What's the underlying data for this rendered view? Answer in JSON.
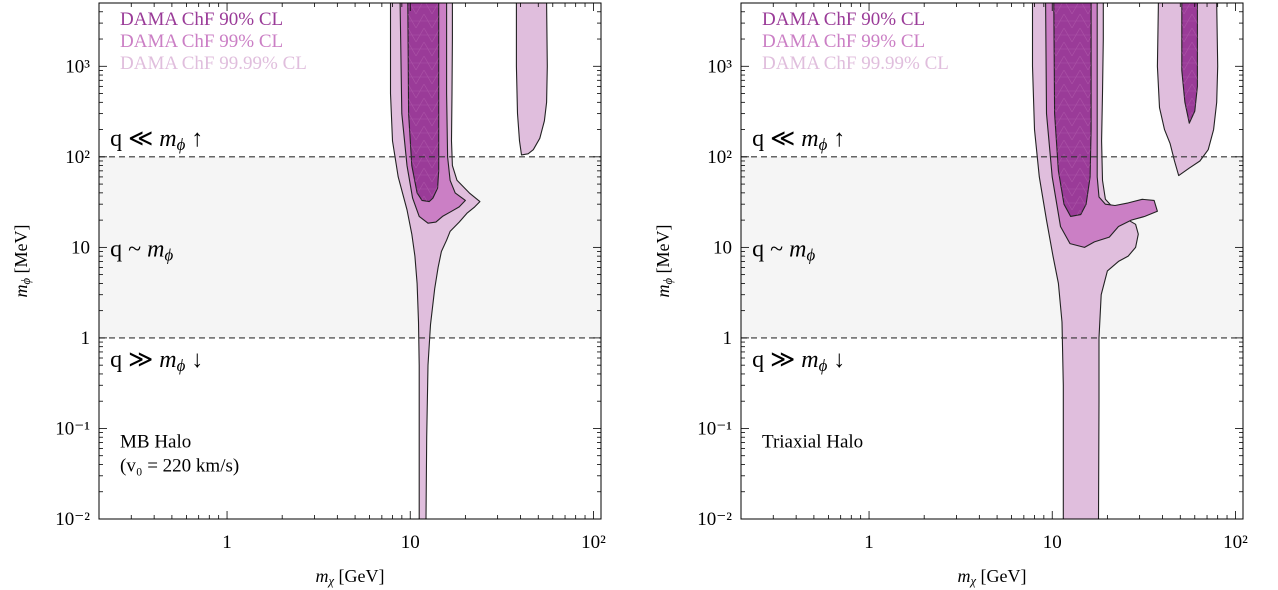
{
  "chart_data": [
    {
      "type": "area",
      "subtype": "confidence-contour",
      "xlabel": "m_χ [GeV]",
      "ylabel": "m_ϕ [MeV]",
      "x_scale": "log",
      "y_scale": "log",
      "xlim": [
        0.2,
        110
      ],
      "ylim": [
        0.01,
        5000
      ],
      "x_ticks": [
        {
          "v": 1,
          "label": "1"
        },
        {
          "v": 10,
          "label": "10"
        },
        {
          "v": 100,
          "label": "10²"
        }
      ],
      "y_ticks": [
        {
          "v": 0.01,
          "label": "10⁻²"
        },
        {
          "v": 0.1,
          "label": "10⁻¹"
        },
        {
          "v": 1,
          "label": "1"
        },
        {
          "v": 10,
          "label": "10"
        },
        {
          "v": 100,
          "label": "10²"
        },
        {
          "v": 1000,
          "label": "10³"
        }
      ],
      "shaded_band": [
        1,
        100
      ],
      "reference_lines": [
        1,
        100
      ],
      "region_labels": [
        {
          "text": "q ≪ m_ϕ ↑",
          "x": 0.23,
          "y": 165
        },
        {
          "text": "q ~ m_ϕ",
          "x": 0.23,
          "y": 10
        },
        {
          "text": "q ≫ m_ϕ ↓",
          "x": 0.23,
          "y": 0.6
        }
      ],
      "halo_label": [
        "MB Halo",
        "(v₀ = 220 km/s)"
      ],
      "legend": [
        "DAMA ChF 90% CL",
        "DAMA ChF 99% CL",
        "DAMA ChF 99.99% CL"
      ],
      "series": [
        {
          "name": "DAMA ChF 99.99% CL",
          "color": "#e0bedd",
          "regions": [
            [
              [
                7.8,
                5000
              ],
              [
                7.8,
                500
              ],
              [
                8.0,
                150
              ],
              [
                8.6,
                60
              ],
              [
                9.6,
                26
              ],
              [
                10.2,
                14
              ],
              [
                10.6,
                8
              ],
              [
                10.9,
                4
              ],
              [
                11.1,
                1.5
              ],
              [
                11.2,
                0.5
              ],
              [
                11.2,
                0.08
              ],
              [
                11.2,
                0.01
              ],
              [
                12.2,
                0.01
              ],
              [
                12.3,
                0.08
              ],
              [
                12.5,
                0.5
              ],
              [
                12.9,
                1.4
              ],
              [
                13.6,
                3.5
              ],
              [
                14.2,
                6
              ],
              [
                14.8,
                9
              ],
              [
                15.8,
                12
              ],
              [
                16.5,
                15
              ],
              [
                18.5,
                19
              ],
              [
                20.5,
                24
              ],
              [
                22.5,
                28
              ],
              [
                24,
                32
              ],
              [
                21,
                40
              ],
              [
                18,
                55
              ],
              [
                17,
                80
              ],
              [
                16.8,
                150
              ],
              [
                16.9,
                500
              ],
              [
                17,
                2000
              ],
              [
                17,
                5000
              ]
            ],
            [
              [
                38,
                5000
              ],
              [
                38,
                1000
              ],
              [
                38.5,
                300
              ],
              [
                39.5,
                150
              ],
              [
                40.5,
                105
              ],
              [
                44,
                108
              ],
              [
                47,
                120
              ],
              [
                51,
                160
              ],
              [
                54,
                250
              ],
              [
                55.5,
                400
              ],
              [
                56,
                1000
              ],
              [
                55.5,
                5000
              ]
            ]
          ]
        },
        {
          "name": "DAMA ChF 99% CL",
          "color": "#cb7fc5",
          "regions": [
            [
              [
                8.8,
                5000
              ],
              [
                9,
                300
              ],
              [
                9.6,
                80
              ],
              [
                10.3,
                35
              ],
              [
                11.2,
                22
              ],
              [
                12.5,
                18.5
              ],
              [
                13.8,
                19
              ],
              [
                15,
                22
              ],
              [
                16.8,
                25
              ],
              [
                18.5,
                28
              ],
              [
                20,
                33
              ],
              [
                17.6,
                40
              ],
              [
                16.5,
                55
              ],
              [
                16,
                100
              ],
              [
                15.8,
                500
              ],
              [
                15.8,
                5000
              ]
            ]
          ]
        },
        {
          "name": "DAMA ChF 90% CL",
          "color": "#9a3b98",
          "regions": [
            [
              [
                9.7,
                5000
              ],
              [
                9.8,
                300
              ],
              [
                10.2,
                80
              ],
              [
                10.9,
                40
              ],
              [
                11.6,
                33
              ],
              [
                12.7,
                32
              ],
              [
                13.3,
                35
              ],
              [
                14.1,
                45
              ],
              [
                14.3,
                70
              ],
              [
                14.3,
                5000
              ]
            ]
          ]
        }
      ]
    },
    {
      "type": "area",
      "subtype": "confidence-contour",
      "xlabel": "m_χ [GeV]",
      "ylabel": "m_ϕ [MeV]",
      "x_scale": "log",
      "y_scale": "log",
      "xlim": [
        0.2,
        110
      ],
      "ylim": [
        0.01,
        5000
      ],
      "x_ticks": [
        {
          "v": 1,
          "label": "1"
        },
        {
          "v": 10,
          "label": "10"
        },
        {
          "v": 100,
          "label": "10²"
        }
      ],
      "y_ticks": [
        {
          "v": 0.01,
          "label": "10⁻²"
        },
        {
          "v": 0.1,
          "label": "10⁻¹"
        },
        {
          "v": 1,
          "label": "1"
        },
        {
          "v": 10,
          "label": "10"
        },
        {
          "v": 100,
          "label": "10²"
        },
        {
          "v": 1000,
          "label": "10³"
        }
      ],
      "shaded_band": [
        1,
        100
      ],
      "reference_lines": [
        1,
        100
      ],
      "region_labels": [
        {
          "text": "q ≪ m_ϕ ↑",
          "x": 0.23,
          "y": 165
        },
        {
          "text": "q ~ m_ϕ",
          "x": 0.23,
          "y": 10
        },
        {
          "text": "q ≫ m_ϕ ↓",
          "x": 0.23,
          "y": 0.6
        }
      ],
      "halo_label": [
        "Triaxial Halo"
      ],
      "legend": [
        "DAMA ChF 90% CL",
        "DAMA ChF 99% CL",
        "DAMA ChF 99.99% CL"
      ],
      "series": [
        {
          "name": "DAMA ChF 99.99% CL",
          "color": "#e0bedd",
          "regions": [
            [
              [
                7.8,
                5000
              ],
              [
                7.8,
                1000
              ],
              [
                8,
                200
              ],
              [
                8.5,
                60
              ],
              [
                9.3,
                20
              ],
              [
                10.1,
                8
              ],
              [
                10.8,
                4
              ],
              [
                11.3,
                1.5
              ],
              [
                11.5,
                0.3
              ],
              [
                11.5,
                0.01
              ],
              [
                17.9,
                0.01
              ],
              [
                18,
                0.2
              ],
              [
                18,
                1
              ],
              [
                18.5,
                3
              ],
              [
                20,
                5.5
              ],
              [
                23,
                7
              ],
              [
                26,
                8
              ],
              [
                28.5,
                10
              ],
              [
                29.5,
                14
              ],
              [
                28.5,
                18
              ],
              [
                25,
                21
              ],
              [
                22,
                26
              ],
              [
                19.5,
                34
              ],
              [
                18.8,
                55
              ],
              [
                18.6,
                150
              ],
              [
                18.8,
                500
              ],
              [
                19,
                2000
              ],
              [
                19,
                5000
              ]
            ],
            [
              [
                38,
                5000
              ],
              [
                37.5,
                1000
              ],
              [
                38.5,
                350
              ],
              [
                41,
                200
              ],
              [
                44,
                140
              ],
              [
                46.5,
                90
              ],
              [
                49,
                62
              ],
              [
                56,
                75
              ],
              [
                64,
                90
              ],
              [
                71,
                120
              ],
              [
                76,
                200
              ],
              [
                79,
                400
              ],
              [
                80,
                1000
              ],
              [
                79,
                5000
              ]
            ]
          ]
        },
        {
          "name": "DAMA ChF 99% CL",
          "color": "#cb7fc5",
          "regions": [
            [
              [
                9.2,
                5000
              ],
              [
                9.3,
                300
              ],
              [
                10,
                60
              ],
              [
                11.1,
                17
              ],
              [
                12.5,
                11
              ],
              [
                15,
                10
              ],
              [
                17,
                11.5
              ],
              [
                20.5,
                13
              ],
              [
                23,
                17
              ],
              [
                27,
                20
              ],
              [
                32,
                22
              ],
              [
                37.5,
                25
              ],
              [
                36,
                33
              ],
              [
                31,
                34
              ],
              [
                26,
                31
              ],
              [
                22,
                29
              ],
              [
                19.5,
                30
              ],
              [
                18,
                36
              ],
              [
                17.6,
                60
              ],
              [
                17.6,
                200
              ],
              [
                17.6,
                5000
              ]
            ]
          ]
        },
        {
          "name": "DAMA ChF 90% CL",
          "color": "#9a3b98",
          "regions": [
            [
              [
                10.2,
                5000
              ],
              [
                10.3,
                300
              ],
              [
                10.8,
                70
              ],
              [
                11.6,
                30
              ],
              [
                12.6,
                22
              ],
              [
                14.3,
                23
              ],
              [
                15.3,
                30
              ],
              [
                16.1,
                60
              ],
              [
                16.3,
                200
              ],
              [
                16.3,
                5000
              ]
            ],
            [
              [
                51,
                5000
              ],
              [
                51,
                900
              ],
              [
                53,
                400
              ],
              [
                56,
                235
              ],
              [
                60,
                320
              ],
              [
                62,
                600
              ],
              [
                62,
                2000
              ],
              [
                62,
                5000
              ]
            ]
          ]
        }
      ]
    }
  ]
}
